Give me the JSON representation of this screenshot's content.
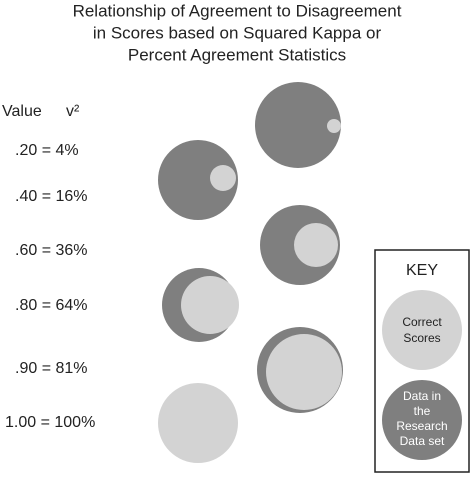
{
  "header": {
    "title_lines": [
      "Relationship of Agreement to Disagreement",
      "in Scores based on Squared Kappa or",
      "Percent Agreement Statistics"
    ]
  },
  "columns": {
    "value": "Value",
    "v_squared": "v²"
  },
  "rows": [
    ".20 = 4%",
    ".40 = 16%",
    ".60 = 36%",
    ".80 = 64%",
    ".90 = 81%",
    "1.00 = 100%"
  ],
  "key": {
    "title": "KEY",
    "correct_lines": [
      "Correct",
      "Scores"
    ],
    "data_lines": [
      "Data in",
      "the",
      "Research",
      "Data set"
    ]
  }
}
